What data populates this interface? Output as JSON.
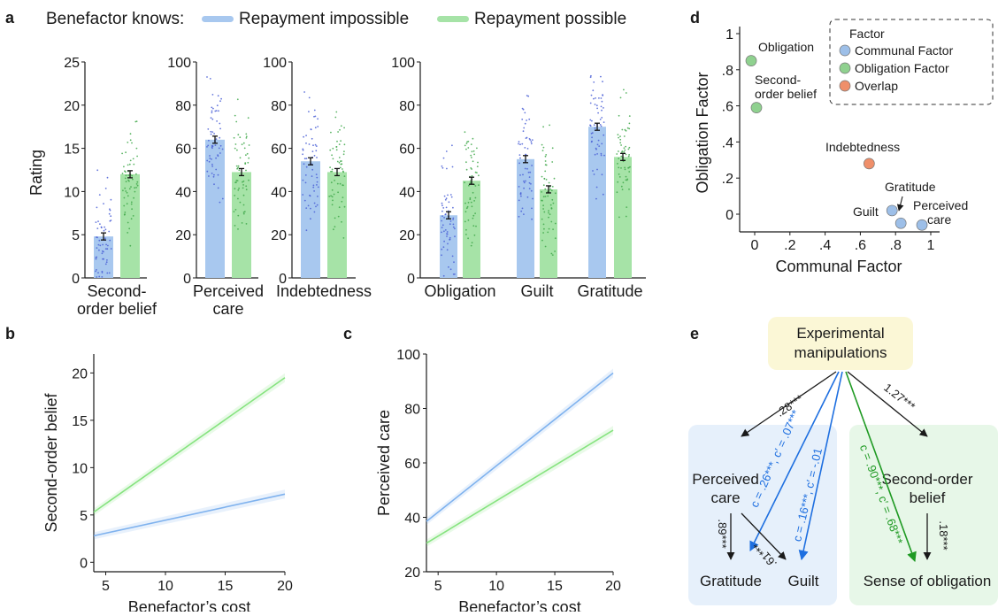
{
  "legend": {
    "prefix": "Benefactor knows:",
    "items": [
      {
        "label": "Repayment impossible",
        "color": "#a8c8ef"
      },
      {
        "label": "Repayment possible",
        "color": "#a6e3a7"
      }
    ]
  },
  "colors": {
    "impossible_bar": "#a8c8ef",
    "possible_bar": "#a6e3a7",
    "impossible_dots": "#4a5fd6",
    "possible_dots": "#3fa84a",
    "impossible_line": "#7fb2ee",
    "possible_line": "#86e37f",
    "communal": "#9dbfe8",
    "obligation": "#8fd18f",
    "overlap": "#ef8f6a",
    "box_yellow": "#fbf7d6",
    "box_blue": "#e6f0fb",
    "box_green": "#e7f7e8",
    "arrow_blue": "#1e6fe0",
    "arrow_green": "#1f9a23"
  },
  "panels": {
    "a": "a",
    "b": "b",
    "c": "c",
    "d": "d",
    "e": "e"
  },
  "chart_data": [
    {
      "id": "a",
      "type": "bar",
      "ylabel": "Rating",
      "groups": [
        {
          "label_lines": [
            "Second-",
            "order belief"
          ],
          "ylim": [
            0,
            25
          ],
          "yticks": [
            "0",
            "5",
            "10",
            "15",
            "20",
            "25"
          ],
          "values": {
            "impossible": 4.8,
            "possible": 12.0
          }
        },
        {
          "label_lines": [
            "Perceived",
            "care"
          ],
          "ylim": [
            0,
            100
          ],
          "yticks": [
            "0",
            "20",
            "40",
            "60",
            "80",
            "100"
          ],
          "values": {
            "impossible": 64,
            "possible": 49
          }
        },
        {
          "label_lines": [
            "Indebtedness"
          ],
          "ylim": [
            0,
            100
          ],
          "yticks": [
            "0",
            "20",
            "40",
            "60",
            "80",
            "100"
          ],
          "values": {
            "impossible": 54,
            "possible": 49
          }
        },
        {
          "label_lines": [
            "Obligation"
          ],
          "ylim": [
            0,
            100
          ],
          "yticks": [
            "0",
            "20",
            "40",
            "60",
            "80",
            "100"
          ],
          "values": {
            "impossible": 29,
            "possible": 45
          },
          "shared_axis": true
        },
        {
          "label_lines": [
            "Guilt"
          ],
          "ylim": [
            0,
            100
          ],
          "values": {
            "impossible": 55,
            "possible": 41
          },
          "shared_axis_child": true
        },
        {
          "label_lines": [
            "Gratitude"
          ],
          "ylim": [
            0,
            100
          ],
          "values": {
            "impossible": 70,
            "possible": 56
          },
          "shared_axis_child": true
        }
      ]
    },
    {
      "id": "b",
      "type": "line",
      "xlabel": "Benefactor’s cost",
      "ylabel": "Second-order belief",
      "xlim": [
        4,
        20
      ],
      "ylim": [
        -1,
        22
      ],
      "xticks": [
        5,
        10,
        15,
        20
      ],
      "yticks": [
        0,
        5,
        10,
        15,
        20
      ],
      "xtick_labels": [
        "5",
        "10",
        "15",
        "20"
      ],
      "ytick_labels": [
        "0",
        "5",
        "10",
        "15",
        "20"
      ],
      "series": [
        {
          "key": "possible",
          "x": [
            4,
            20
          ],
          "y": [
            5.3,
            19.5
          ]
        },
        {
          "key": "impossible",
          "x": [
            4,
            20
          ],
          "y": [
            2.8,
            7.2
          ]
        }
      ]
    },
    {
      "id": "c",
      "type": "line",
      "xlabel": "Benefactor’s cost",
      "ylabel": "Perceived care",
      "xlim": [
        4,
        20
      ],
      "ylim": [
        20,
        100
      ],
      "xticks": [
        5,
        10,
        15,
        20
      ],
      "yticks": [
        20,
        40,
        60,
        80,
        100
      ],
      "xtick_labels": [
        "5",
        "10",
        "15",
        "20"
      ],
      "ytick_labels": [
        "20",
        "40",
        "60",
        "80",
        "100"
      ],
      "series": [
        {
          "key": "impossible",
          "x": [
            4,
            20
          ],
          "y": [
            38.5,
            93.0
          ]
        },
        {
          "key": "possible",
          "x": [
            4,
            20
          ],
          "y": [
            30.5,
            72.0
          ]
        }
      ]
    },
    {
      "id": "d",
      "type": "scatter",
      "xlabel": "Communal Factor",
      "ylabel": "Obligation Factor",
      "xlim": [
        -0.08,
        1.02
      ],
      "ylim": [
        -0.1,
        1.07
      ],
      "xticks": [
        0,
        0.2,
        0.4,
        0.6,
        0.8,
        1
      ],
      "yticks": [
        0,
        0.2,
        0.4,
        0.6,
        0.8,
        1
      ],
      "xtick_labels": [
        "0",
        ".2",
        ".4",
        ".6",
        ".8",
        "1"
      ],
      "ytick_labels": [
        "0",
        ".2",
        ".4",
        ".6",
        ".8",
        "1"
      ],
      "legend": {
        "title": "Factor",
        "items": [
          {
            "label": "Communal Factor",
            "key": "communal"
          },
          {
            "label": "Obligation Factor",
            "key": "obligation"
          },
          {
            "label": "Overlap",
            "key": "overlap"
          }
        ]
      },
      "points": [
        {
          "label": "Obligation",
          "x": -0.02,
          "y": 0.85,
          "key": "obligation"
        },
        {
          "label": "Second-order belief",
          "x": 0.01,
          "y": 0.59,
          "key": "obligation"
        },
        {
          "label": "Indebtedness",
          "x": 0.65,
          "y": 0.28,
          "key": "overlap"
        },
        {
          "label": "Gratitude",
          "x": 0.83,
          "y": -0.05,
          "key": "communal"
        },
        {
          "label": "Guilt",
          "x": 0.78,
          "y": 0.02,
          "key": "communal"
        },
        {
          "label": "Perceived care",
          "x": 0.95,
          "y": -0.06,
          "key": "communal"
        }
      ],
      "point_labels": {
        "obligation": "Obligation",
        "sob_1": "Second-",
        "sob_2": "order belief",
        "indebtedness": "Indebtedness",
        "gratitude": "Gratitude",
        "guilt": "Guilt",
        "care_1": "Perceived",
        "care_2": "care"
      }
    }
  ],
  "diagram_e": {
    "top_1": "Experimental",
    "top_2": "manipulations",
    "perceived_1": "Perceived",
    "perceived_2": "care",
    "sob_1": "Second-order",
    "sob_2": "belief",
    "gratitude": "Gratitude",
    "guilt": "Guilt",
    "obligation": "Sense of obligation",
    "path_top_left": ".28***",
    "path_top_right": "1.27***",
    "path_blue_1": "c = .26***, c′ = .07***",
    "path_blue_2": "c = .16***, c′ = -.01",
    "path_green": "c = .90***, c′ = .68***",
    "path_pc_grat": ".89***",
    "path_pc_guilt": ".61***",
    "path_sob_obl": ".18***"
  }
}
